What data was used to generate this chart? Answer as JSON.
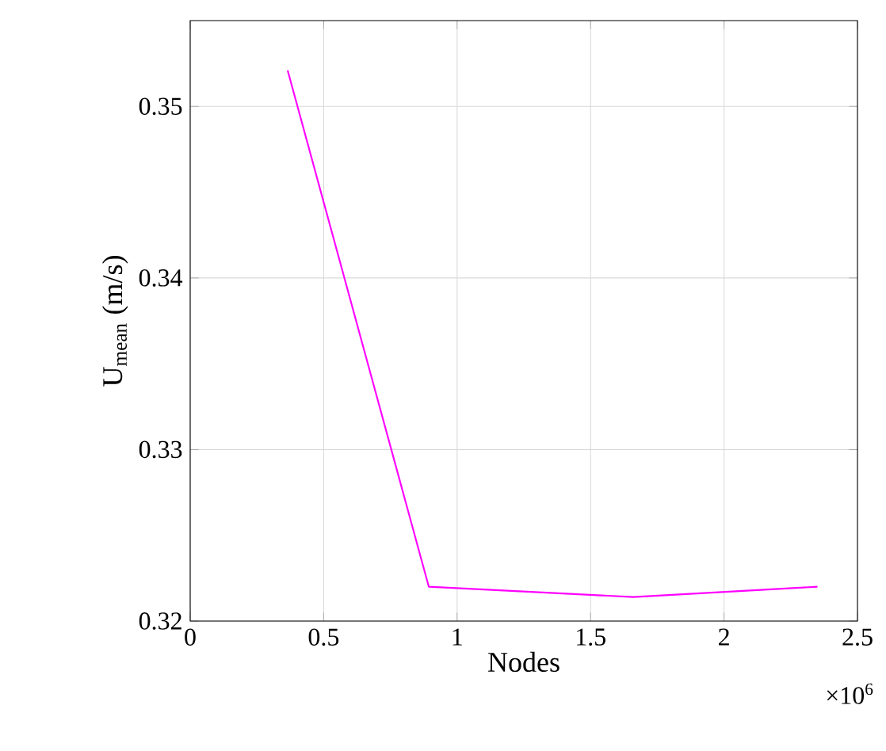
{
  "chart_data": {
    "type": "line",
    "xlabel": "Nodes",
    "ylabel": "U$_{mean}$ (m/s)",
    "x": [
      0.365,
      0.894,
      1.66,
      2.35
    ],
    "series": [
      {
        "color": "#ff00ff",
        "values": [
          0.3521,
          0.322,
          0.3214,
          0.322
        ]
      }
    ],
    "xlim": [
      0,
      2.5
    ],
    "xticks": [
      0,
      0.5,
      1,
      1.5,
      2,
      2.5
    ],
    "ylim": [
      0.32,
      0.355
    ],
    "yticks": [
      0.32,
      0.33,
      0.34,
      0.35
    ],
    "grid": true,
    "marker": "none",
    "line_style": "solid",
    "annotations": [
      "×10$^{6}$"
    ]
  }
}
